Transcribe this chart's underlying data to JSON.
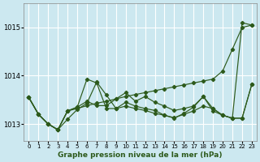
{
  "title": "Graphe pression niveau de la mer (hPa)",
  "background_color": "#cce8f0",
  "grid_color": "#ffffff",
  "line_color": "#2d5a1b",
  "xlim": [
    -0.5,
    23.5
  ],
  "ylim": [
    1012.65,
    1015.5
  ],
  "yticks": [
    1013,
    1014,
    1015
  ],
  "xtick_labels": [
    "0",
    "1",
    "2",
    "3",
    "4",
    "5",
    "6",
    "7",
    "8",
    "9",
    "10",
    "11",
    "12",
    "13",
    "14",
    "15",
    "16",
    "17",
    "18",
    "19",
    "20",
    "21",
    "22",
    "23"
  ],
  "line1_x": [
    0,
    1,
    2,
    3,
    4,
    5,
    6,
    7,
    8,
    9,
    10,
    11,
    12,
    13,
    14,
    15,
    16,
    17,
    18,
    19,
    20,
    21,
    22,
    23
  ],
  "line1_y": [
    1013.55,
    1013.2,
    1013.0,
    1012.88,
    1013.27,
    1013.32,
    1013.38,
    1013.43,
    1013.47,
    1013.52,
    1013.57,
    1013.61,
    1013.65,
    1013.69,
    1013.73,
    1013.77,
    1013.81,
    1013.85,
    1013.89,
    1013.93,
    1014.1,
    1014.55,
    1015.0,
    1015.05
  ],
  "line2_x": [
    0,
    1,
    2,
    3,
    4,
    5,
    6,
    7,
    8,
    9,
    10,
    11,
    12,
    13,
    14,
    15,
    16,
    17,
    18,
    19,
    20,
    21,
    22,
    23
  ],
  "line2_y": [
    1013.55,
    1013.2,
    1013.0,
    1012.88,
    1013.27,
    1013.35,
    1013.93,
    1013.85,
    1013.32,
    1013.32,
    1013.37,
    1013.32,
    1013.28,
    1013.22,
    1013.18,
    1013.13,
    1013.2,
    1013.27,
    1013.37,
    1013.32,
    1013.18,
    1013.12,
    1013.12,
    1013.82
  ],
  "line3_x": [
    0,
    1,
    2,
    3,
    4,
    5,
    6,
    7,
    8,
    9,
    10,
    11,
    12,
    13,
    14,
    15,
    16,
    17,
    18,
    19,
    20,
    21,
    22,
    23
  ],
  "line3_y": [
    1013.55,
    1013.2,
    1013.0,
    1012.88,
    1013.27,
    1013.35,
    1013.47,
    1013.38,
    1013.38,
    1013.52,
    1013.65,
    1013.47,
    1013.57,
    1013.45,
    1013.37,
    1013.28,
    1013.32,
    1013.37,
    1013.57,
    1013.27,
    1013.18,
    1013.12,
    1013.12,
    1013.82
  ],
  "line4_x": [
    0,
    1,
    2,
    3,
    4,
    5,
    6,
    7,
    8,
    9,
    10,
    11,
    12,
    13,
    14,
    15,
    16,
    17,
    18,
    19,
    20,
    21,
    22,
    23
  ],
  "line4_y": [
    1013.55,
    1013.2,
    1013.0,
    1012.88,
    1013.1,
    1013.3,
    1013.43,
    1013.87,
    1013.6,
    1013.32,
    1013.45,
    1013.37,
    1013.32,
    1013.28,
    1013.18,
    1013.12,
    1013.22,
    1013.35,
    1013.57,
    1013.32,
    1013.18,
    1013.12,
    1015.1,
    1015.05
  ]
}
